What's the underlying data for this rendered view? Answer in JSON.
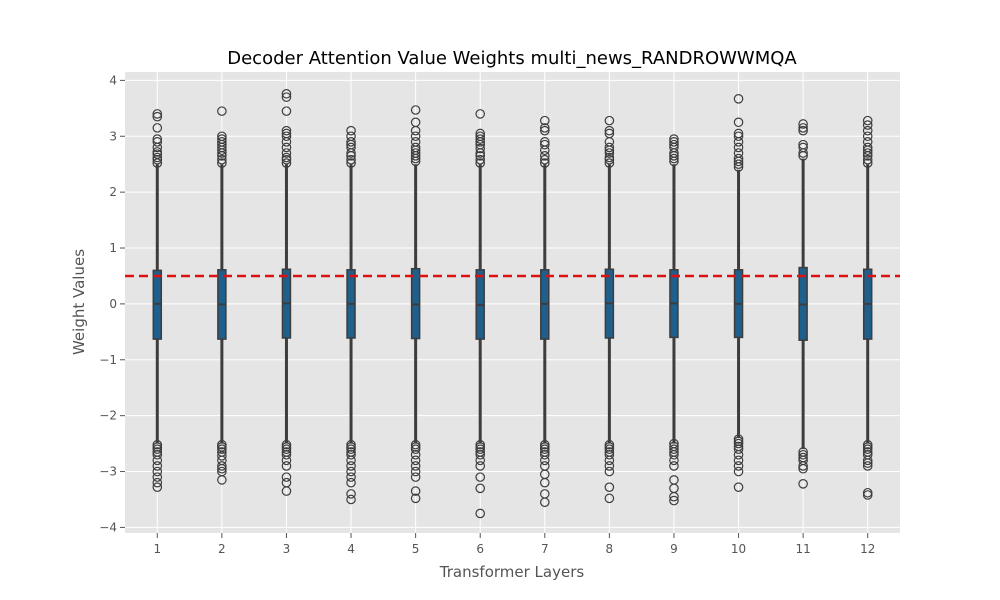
{
  "chart_data": {
    "type": "box",
    "title": "Decoder Attention Value Weights multi_news_RANDROWWMQA",
    "xlabel": "Transformer Layers",
    "ylabel": "Weight Values",
    "ylim": [
      -4.1,
      4.15
    ],
    "yticks": [
      -4,
      -3,
      -2,
      -1,
      0,
      1,
      2,
      3,
      4
    ],
    "grid": true,
    "reference_line": {
      "value": 0.5,
      "style": "dashed",
      "color": "#dd1111"
    },
    "box_color": "#1f5f8b",
    "categories": [
      "1",
      "2",
      "3",
      "4",
      "5",
      "6",
      "7",
      "8",
      "9",
      "10",
      "11",
      "12"
    ],
    "boxes": [
      {
        "q1": -0.63,
        "median": 0.0,
        "q3": 0.6,
        "whisker_low": -2.5,
        "whisker_high": 2.5,
        "outliers_high": [
          2.52,
          2.58,
          2.62,
          2.68,
          2.72,
          2.8,
          2.9,
          2.95,
          3.15,
          3.35,
          3.4
        ],
        "outliers_low": [
          -2.52,
          -2.56,
          -2.6,
          -2.65,
          -2.7,
          -2.8,
          -2.9,
          -3.0,
          -3.1,
          -3.2,
          -3.28
        ]
      },
      {
        "q1": -0.63,
        "median": -0.01,
        "q3": 0.61,
        "whisker_low": -2.5,
        "whisker_high": 2.5,
        "outliers_high": [
          2.52,
          2.58,
          2.65,
          2.7,
          2.75,
          2.8,
          2.85,
          2.9,
          2.95,
          3.0,
          3.45
        ],
        "outliers_low": [
          -2.52,
          -2.56,
          -2.6,
          -2.65,
          -2.72,
          -2.8,
          -2.9,
          -2.95,
          -3.0,
          -3.15
        ]
      },
      {
        "q1": -0.61,
        "median": 0.01,
        "q3": 0.62,
        "whisker_low": -2.5,
        "whisker_high": 2.5,
        "outliers_high": [
          2.52,
          2.58,
          2.62,
          2.7,
          2.8,
          2.9,
          3.0,
          3.05,
          3.1,
          3.45,
          3.7,
          3.76
        ],
        "outliers_low": [
          -2.52,
          -2.56,
          -2.6,
          -2.65,
          -2.7,
          -2.8,
          -2.9,
          -3.1,
          -3.2,
          -3.35
        ]
      },
      {
        "q1": -0.61,
        "median": 0.0,
        "q3": 0.61,
        "whisker_low": -2.5,
        "whisker_high": 2.5,
        "outliers_high": [
          2.52,
          2.58,
          2.65,
          2.7,
          2.8,
          2.85,
          2.9,
          3.0,
          3.1
        ],
        "outliers_low": [
          -2.52,
          -2.56,
          -2.6,
          -2.65,
          -2.7,
          -2.8,
          -2.9,
          -3.0,
          -3.1,
          -3.2,
          -3.4,
          -3.5
        ]
      },
      {
        "q1": -0.62,
        "median": -0.01,
        "q3": 0.63,
        "whisker_low": -2.5,
        "whisker_high": 2.5,
        "outliers_high": [
          2.55,
          2.6,
          2.65,
          2.7,
          2.75,
          2.8,
          2.9,
          3.0,
          3.1,
          3.25,
          3.47
        ],
        "outliers_low": [
          -2.52,
          -2.56,
          -2.6,
          -2.7,
          -2.8,
          -2.9,
          -3.0,
          -3.1,
          -3.35,
          -3.48
        ]
      },
      {
        "q1": -0.63,
        "median": -0.02,
        "q3": 0.61,
        "whisker_low": -2.5,
        "whisker_high": 2.5,
        "outliers_high": [
          2.52,
          2.58,
          2.65,
          2.7,
          2.78,
          2.85,
          2.9,
          2.95,
          3.0,
          3.05,
          3.4
        ],
        "outliers_low": [
          -2.52,
          -2.56,
          -2.6,
          -2.65,
          -2.7,
          -2.8,
          -2.9,
          -3.1,
          -3.3,
          -3.75
        ]
      },
      {
        "q1": -0.63,
        "median": 0.0,
        "q3": 0.61,
        "whisker_low": -2.5,
        "whisker_high": 2.5,
        "outliers_high": [
          2.52,
          2.58,
          2.65,
          2.75,
          2.85,
          2.9,
          3.1,
          3.15,
          3.28
        ],
        "outliers_low": [
          -2.52,
          -2.56,
          -2.6,
          -2.65,
          -2.7,
          -2.8,
          -2.9,
          -3.05,
          -3.2,
          -3.4,
          -3.55
        ]
      },
      {
        "q1": -0.61,
        "median": 0.01,
        "q3": 0.62,
        "whisker_low": -2.5,
        "whisker_high": 2.5,
        "outliers_high": [
          2.52,
          2.58,
          2.62,
          2.7,
          2.75,
          2.8,
          2.9,
          3.05,
          3.1,
          3.28
        ],
        "outliers_low": [
          -2.52,
          -2.56,
          -2.6,
          -2.65,
          -2.7,
          -2.8,
          -2.9,
          -3.0,
          -3.28,
          -3.48
        ]
      },
      {
        "q1": -0.6,
        "median": 0.01,
        "q3": 0.61,
        "whisker_low": -2.5,
        "whisker_high": 2.5,
        "outliers_high": [
          2.55,
          2.6,
          2.65,
          2.7,
          2.8,
          2.85,
          2.9,
          2.95
        ],
        "outliers_low": [
          -2.5,
          -2.55,
          -2.6,
          -2.65,
          -2.7,
          -2.8,
          -2.9,
          -3.15,
          -3.3,
          -3.45,
          -3.52
        ]
      },
      {
        "q1": -0.6,
        "median": 0.0,
        "q3": 0.61,
        "whisker_low": -2.4,
        "whisker_high": 2.4,
        "outliers_high": [
          2.45,
          2.5,
          2.55,
          2.6,
          2.7,
          2.8,
          2.9,
          3.0,
          3.05,
          3.25,
          3.67
        ],
        "outliers_low": [
          -2.42,
          -2.46,
          -2.5,
          -2.55,
          -2.6,
          -2.7,
          -2.8,
          -2.9,
          -3.0,
          -3.28
        ]
      },
      {
        "q1": -0.65,
        "median": -0.01,
        "q3": 0.65,
        "whisker_low": -2.6,
        "whisker_high": 2.6,
        "outliers_high": [
          2.65,
          2.7,
          2.8,
          2.85,
          3.1,
          3.15,
          3.22
        ],
        "outliers_low": [
          -2.65,
          -2.7,
          -2.75,
          -2.8,
          -2.9,
          -2.95,
          -3.22
        ]
      },
      {
        "q1": -0.63,
        "median": 0.0,
        "q3": 0.62,
        "whisker_low": -2.5,
        "whisker_high": 2.5,
        "outliers_high": [
          2.52,
          2.58,
          2.65,
          2.7,
          2.75,
          2.8,
          2.9,
          3.0,
          3.1,
          3.2,
          3.28
        ],
        "outliers_low": [
          -2.52,
          -2.56,
          -2.6,
          -2.65,
          -2.7,
          -2.8,
          -2.85,
          -2.9,
          -3.38,
          -3.42
        ]
      }
    ]
  }
}
